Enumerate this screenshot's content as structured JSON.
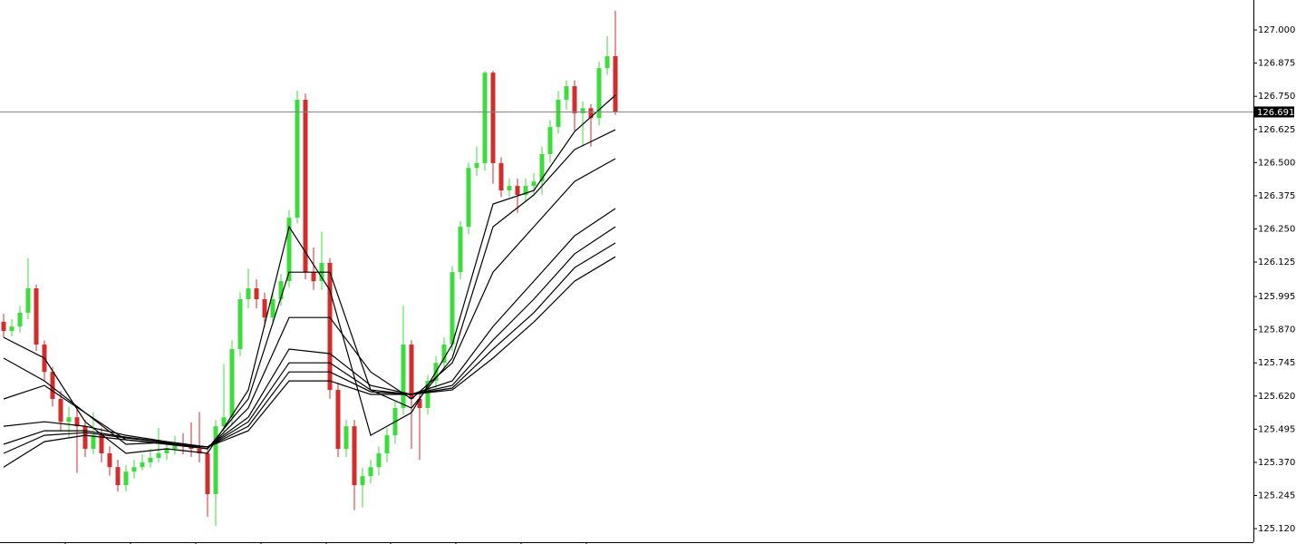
{
  "chart_data": {
    "type": "candlestick",
    "up_color": "#3ddc3d",
    "down_color": "#d42b2b",
    "line_color": "#000000",
    "price_line_color": "#888888",
    "ylim": [
      125.069,
      127.113
    ],
    "yticks": [
      {
        "value": 127.0,
        "label": "127.000"
      },
      126.875,
      {
        "value": 126.75,
        "label": "126.750"
      },
      126.625,
      {
        "value": 126.5,
        "label": "126.500"
      },
      126.375,
      {
        "value": 126.25,
        "label": "126.250"
      },
      126.125,
      125.995,
      {
        "value": 125.87,
        "label": "125.870"
      },
      125.745,
      {
        "value": 125.62,
        "label": "125.620"
      },
      125.495,
      {
        "value": 125.37,
        "label": "125.370"
      },
      125.245,
      {
        "value": 125.12,
        "label": "125.120"
      }
    ],
    "last_price": 126.691,
    "open": [
      125.9,
      125.865,
      125.882,
      125.934,
      126.026,
      125.814,
      125.711,
      125.609,
      125.523,
      125.54,
      125.506,
      125.421,
      125.472,
      125.404,
      125.352,
      125.284,
      125.335,
      125.352,
      125.37,
      125.387,
      125.404,
      125.421,
      125.438,
      125.431,
      125.421,
      125.404,
      125.25,
      125.506,
      125.54,
      125.797,
      125.985,
      126.026,
      125.985,
      125.916,
      125.985,
      126.053,
      126.292,
      126.737,
      126.087,
      126.053,
      126.122,
      125.643,
      125.421,
      125.506,
      125.284,
      125.318,
      125.352,
      125.404,
      125.472,
      125.575,
      125.814,
      125.609,
      125.575,
      125.677,
      125.745,
      125.814,
      126.087,
      126.258,
      126.48,
      126.498,
      126.839,
      126.498,
      126.395,
      126.412,
      126.378,
      126.412,
      126.429,
      126.532,
      126.634,
      126.737,
      126.788,
      126.686,
      126.705,
      126.668,
      126.856,
      126.901
    ],
    "high": [
      125.93,
      125.91,
      125.96,
      126.139,
      126.04,
      125.83,
      125.73,
      125.64,
      125.58,
      125.57,
      125.53,
      125.56,
      125.5,
      125.43,
      125.38,
      125.36,
      125.38,
      125.4,
      125.42,
      125.5,
      125.45,
      125.47,
      125.48,
      125.52,
      125.56,
      125.43,
      125.53,
      125.74,
      125.83,
      126.01,
      126.1,
      126.06,
      126.01,
      126.01,
      126.08,
      126.32,
      126.771,
      126.76,
      126.18,
      126.24,
      126.14,
      125.67,
      125.53,
      125.53,
      125.35,
      125.38,
      125.43,
      125.5,
      125.6,
      125.96,
      125.83,
      125.64,
      125.7,
      125.77,
      125.84,
      126.11,
      126.28,
      126.5,
      126.56,
      126.846,
      126.846,
      126.52,
      126.44,
      126.44,
      126.44,
      126.46,
      126.56,
      126.66,
      126.77,
      126.81,
      126.81,
      126.73,
      126.72,
      126.88,
      126.976,
      127.072
    ],
    "low": [
      125.84,
      125.845,
      125.86,
      125.91,
      125.79,
      125.68,
      125.58,
      125.49,
      125.46,
      125.33,
      125.39,
      125.4,
      125.37,
      125.32,
      125.26,
      125.26,
      125.31,
      125.34,
      125.35,
      125.37,
      125.38,
      125.4,
      125.4,
      125.39,
      125.37,
      125.165,
      125.13,
      125.47,
      125.51,
      125.77,
      125.95,
      125.95,
      125.88,
      125.89,
      125.96,
      126.03,
      126.27,
      126.06,
      126.02,
      126.02,
      125.61,
      125.39,
      125.39,
      125.19,
      125.2,
      125.29,
      125.32,
      125.37,
      125.44,
      125.55,
      125.42,
      125.38,
      125.55,
      125.65,
      125.72,
      125.79,
      126.06,
      126.23,
      126.45,
      126.47,
      126.42,
      126.37,
      126.37,
      126.31,
      126.35,
      126.38,
      126.38,
      126.5,
      126.61,
      126.7,
      126.62,
      126.56,
      126.56,
      126.64,
      126.83,
      126.68
    ],
    "close": [
      125.865,
      125.882,
      125.934,
      126.026,
      125.814,
      125.711,
      125.609,
      125.523,
      125.54,
      125.506,
      125.421,
      125.472,
      125.404,
      125.352,
      125.284,
      125.335,
      125.352,
      125.37,
      125.387,
      125.404,
      125.421,
      125.438,
      125.431,
      125.421,
      125.404,
      125.25,
      125.506,
      125.54,
      125.797,
      125.985,
      126.026,
      125.985,
      125.916,
      125.985,
      126.053,
      126.292,
      126.737,
      126.087,
      126.053,
      126.122,
      125.643,
      125.421,
      125.506,
      125.284,
      125.318,
      125.352,
      125.404,
      125.472,
      125.575,
      125.814,
      125.609,
      125.575,
      125.677,
      125.745,
      125.814,
      126.087,
      126.258,
      126.48,
      126.498,
      126.839,
      126.498,
      126.395,
      126.412,
      126.378,
      126.412,
      126.429,
      126.532,
      126.634,
      126.737,
      126.788,
      126.686,
      126.705,
      126.668,
      126.856,
      126.901,
      126.691
    ],
    "line_x": [
      0,
      5,
      10,
      15,
      20,
      25,
      30,
      35,
      40,
      45,
      50,
      55,
      60,
      65,
      70,
      75
    ],
    "lines": [
      {
        "values": [
          125.841,
          125.763,
          125.523,
          125.404,
          125.421,
          125.404,
          125.643,
          126.258,
          126.019,
          125.472,
          125.557,
          125.814,
          126.344,
          126.395,
          126.617,
          126.754
        ]
      },
      {
        "values": [
          125.763,
          125.677,
          125.557,
          125.438,
          125.445,
          125.421,
          125.609,
          126.087,
          126.087,
          125.643,
          125.575,
          125.763,
          126.258,
          126.378,
          126.549,
          126.624
        ]
      },
      {
        "values": [
          125.609,
          125.66,
          125.557,
          125.455,
          125.438,
          125.421,
          125.575,
          125.916,
          125.916,
          125.711,
          125.609,
          125.745,
          126.087,
          126.258,
          126.429,
          126.515
        ]
      },
      {
        "values": [
          125.506,
          125.523,
          125.506,
          125.472,
          125.448,
          125.428,
          125.54,
          125.797,
          125.78,
          125.66,
          125.626,
          125.677,
          125.882,
          126.053,
          126.224,
          126.327
        ]
      },
      {
        "values": [
          125.438,
          125.489,
          125.489,
          125.465,
          125.445,
          125.428,
          125.523,
          125.745,
          125.745,
          125.643,
          125.626,
          125.66,
          125.831,
          125.985,
          126.156,
          126.258
        ]
      },
      {
        "values": [
          125.404,
          125.472,
          125.482,
          125.462,
          125.445,
          125.428,
          125.506,
          125.711,
          125.711,
          125.636,
          125.626,
          125.65,
          125.797,
          125.934,
          126.104,
          126.197
        ]
      },
      {
        "values": [
          125.352,
          125.448,
          125.472,
          125.455,
          125.441,
          125.428,
          125.489,
          125.677,
          125.677,
          125.626,
          125.626,
          125.643,
          125.763,
          125.899,
          126.053,
          126.145
        ]
      }
    ]
  }
}
